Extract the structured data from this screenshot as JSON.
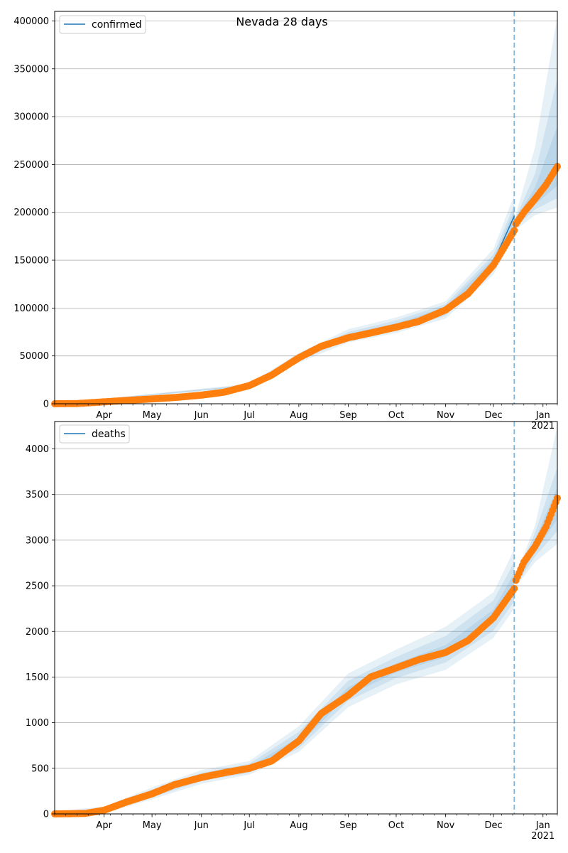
{
  "figure": {
    "title": "Nevada 28 days",
    "cutoff_date": "2020-12-14"
  },
  "colors": {
    "model_line": "#1f77b4",
    "band": "#1f77b4",
    "observed": "#ff7f0e",
    "grid": "#b0b0b0",
    "cutoff_line": "#1f77b4"
  },
  "chart_data": [
    {
      "type": "line",
      "title": "Nevada 28 days",
      "legend": {
        "entries": [
          "confirmed"
        ],
        "placement": "top-left"
      },
      "x_start": "2020-03-01",
      "x_end": "2021-01-10",
      "x_tick_labels": [
        "Apr",
        "May",
        "Jun",
        "Jul",
        "Aug",
        "Sep",
        "Oct",
        "Nov",
        "Dec",
        "Jan\n2021"
      ],
      "ylim": [
        0,
        410000
      ],
      "y_ticks": [
        0,
        50000,
        100000,
        150000,
        200000,
        250000,
        300000,
        350000,
        400000
      ],
      "grid": "y",
      "series": [
        {
          "name": "confirmed",
          "role": "model",
          "points": [
            [
              "2020-03-01",
              0
            ],
            [
              "2020-04-01",
              2000
            ],
            [
              "2020-05-01",
              5000
            ],
            [
              "2020-06-01",
              9000
            ],
            [
              "2020-07-01",
              19000
            ],
            [
              "2020-07-15",
              30000
            ],
            [
              "2020-08-01",
              48000
            ],
            [
              "2020-08-15",
              60000
            ],
            [
              "2020-09-01",
              71000
            ],
            [
              "2020-09-15",
              76000
            ],
            [
              "2020-10-01",
              82000
            ],
            [
              "2020-10-15",
              88000
            ],
            [
              "2020-11-01",
              98000
            ],
            [
              "2020-11-15",
              115000
            ],
            [
              "2020-12-01",
              148000
            ],
            [
              "2020-12-14",
              196000
            ],
            [
              "2020-12-15",
              190000
            ],
            [
              "2020-12-20",
              203000
            ],
            [
              "2020-12-27",
              217000
            ],
            [
              "2021-01-03",
              232000
            ],
            [
              "2021-01-10",
              250000
            ]
          ]
        },
        {
          "name": "confirmed observed",
          "role": "observed",
          "points": [
            [
              "2020-03-01",
              0
            ],
            [
              "2020-03-15",
              200
            ],
            [
              "2020-04-01",
              2000
            ],
            [
              "2020-04-15",
              3500
            ],
            [
              "2020-05-01",
              5000
            ],
            [
              "2020-05-15",
              6500
            ],
            [
              "2020-06-01",
              9000
            ],
            [
              "2020-06-15",
              12000
            ],
            [
              "2020-07-01",
              19000
            ],
            [
              "2020-07-15",
              30000
            ],
            [
              "2020-08-01",
              48000
            ],
            [
              "2020-08-15",
              60000
            ],
            [
              "2020-09-01",
              69000
            ],
            [
              "2020-09-15",
              74000
            ],
            [
              "2020-10-01",
              80000
            ],
            [
              "2020-10-15",
              86000
            ],
            [
              "2020-11-01",
              98000
            ],
            [
              "2020-11-15",
              115000
            ],
            [
              "2020-12-01",
              145000
            ],
            [
              "2020-12-14",
              181000
            ],
            [
              "2020-12-15",
              188000
            ],
            [
              "2020-12-20",
              200000
            ],
            [
              "2020-12-27",
              214000
            ],
            [
              "2021-01-03",
              229000
            ],
            [
              "2021-01-10",
              248000
            ]
          ]
        }
      ],
      "bands": [
        {
          "points": [
            [
              "2020-03-01",
              0,
              0
            ],
            [
              "2020-07-01",
              17000,
              21000
            ],
            [
              "2020-08-01",
              43000,
              53000
            ],
            [
              "2020-09-01",
              64000,
              78000
            ],
            [
              "2020-10-01",
              74000,
              90000
            ],
            [
              "2020-11-01",
              89000,
              107000
            ],
            [
              "2020-12-01",
              135000,
              162000
            ],
            [
              "2020-12-14",
              175000,
              218000
            ],
            [
              "2020-12-15",
              182000,
              198000
            ],
            [
              "2020-12-27",
              197000,
              268000
            ],
            [
              "2021-01-10",
              205000,
              405000
            ]
          ]
        },
        {
          "points": [
            [
              "2020-03-01",
              0,
              0
            ],
            [
              "2020-07-01",
              18000,
              20000
            ],
            [
              "2020-08-01",
              45000,
              51000
            ],
            [
              "2020-09-01",
              67000,
              75000
            ],
            [
              "2020-10-01",
              77000,
              87000
            ],
            [
              "2020-11-01",
              92000,
              104000
            ],
            [
              "2020-12-01",
              140000,
              156000
            ],
            [
              "2020-12-14",
              183000,
              208000
            ],
            [
              "2020-12-15",
              185000,
              195000
            ],
            [
              "2020-12-27",
              203000,
              240000
            ],
            [
              "2021-01-10",
              215000,
              340000
            ]
          ]
        },
        {
          "points": [
            [
              "2020-03-01",
              0,
              0
            ],
            [
              "2020-07-01",
              18500,
              19500
            ],
            [
              "2020-08-01",
              46500,
              49500
            ],
            [
              "2020-09-01",
              69000,
              73000
            ],
            [
              "2020-10-01",
              80000,
              84000
            ],
            [
              "2020-11-01",
              95000,
              101000
            ],
            [
              "2020-12-01",
              144000,
              152000
            ],
            [
              "2020-12-14",
              190000,
              202000
            ],
            [
              "2020-12-15",
              187000,
              193000
            ],
            [
              "2020-12-27",
              208000,
              226000
            ],
            [
              "2021-01-10",
              228000,
              290000
            ]
          ]
        }
      ]
    },
    {
      "type": "line",
      "legend": {
        "entries": [
          "deaths"
        ],
        "placement": "top-left"
      },
      "x_start": "2020-03-01",
      "x_end": "2021-01-10",
      "x_tick_labels": [
        "Apr",
        "May",
        "Jun",
        "Jul",
        "Aug",
        "Sep",
        "Oct",
        "Nov",
        "Dec",
        "Jan\n2021"
      ],
      "ylim": [
        0,
        4300
      ],
      "y_ticks": [
        0,
        500,
        1000,
        1500,
        2000,
        2500,
        3000,
        3500,
        4000
      ],
      "grid": "y",
      "series": [
        {
          "name": "deaths",
          "role": "model",
          "points": [
            [
              "2020-03-01",
              0
            ],
            [
              "2020-03-20",
              5
            ],
            [
              "2020-04-01",
              40
            ],
            [
              "2020-04-15",
              130
            ],
            [
              "2020-05-01",
              220
            ],
            [
              "2020-05-15",
              320
            ],
            [
              "2020-06-01",
              400
            ],
            [
              "2020-06-15",
              450
            ],
            [
              "2020-07-01",
              490
            ],
            [
              "2020-07-15",
              570
            ],
            [
              "2020-08-01",
              780
            ],
            [
              "2020-08-15",
              1100
            ],
            [
              "2020-09-01",
              1340
            ],
            [
              "2020-09-15",
              1510
            ],
            [
              "2020-10-01",
              1600
            ],
            [
              "2020-10-15",
              1690
            ],
            [
              "2020-11-01",
              1770
            ],
            [
              "2020-11-15",
              1900
            ],
            [
              "2020-12-01",
              2150
            ],
            [
              "2020-12-14",
              2500
            ],
            [
              "2020-12-15",
              2560
            ],
            [
              "2020-12-20",
              2700
            ],
            [
              "2020-12-27",
              2920
            ],
            [
              "2021-01-03",
              3120
            ],
            [
              "2021-01-10",
              3400
            ]
          ]
        },
        {
          "name": "deaths observed",
          "role": "observed",
          "points": [
            [
              "2020-03-01",
              0
            ],
            [
              "2020-03-20",
              5
            ],
            [
              "2020-04-01",
              40
            ],
            [
              "2020-04-15",
              130
            ],
            [
              "2020-05-01",
              220
            ],
            [
              "2020-05-15",
              320
            ],
            [
              "2020-06-01",
              400
            ],
            [
              "2020-06-15",
              450
            ],
            [
              "2020-07-01",
              500
            ],
            [
              "2020-07-15",
              580
            ],
            [
              "2020-08-01",
              800
            ],
            [
              "2020-08-15",
              1100
            ],
            [
              "2020-09-01",
              1300
            ],
            [
              "2020-09-15",
              1500
            ],
            [
              "2020-10-01",
              1600
            ],
            [
              "2020-10-15",
              1690
            ],
            [
              "2020-11-01",
              1770
            ],
            [
              "2020-11-15",
              1900
            ],
            [
              "2020-12-01",
              2150
            ],
            [
              "2020-12-14",
              2470
            ],
            [
              "2020-12-15",
              2560
            ],
            [
              "2020-12-20",
              2760
            ],
            [
              "2020-12-27",
              2930
            ],
            [
              "2021-01-03",
              3150
            ],
            [
              "2021-01-10",
              3460
            ]
          ]
        }
      ],
      "bands": [
        {
          "points": [
            [
              "2020-03-01",
              30,
              0
            ],
            [
              "2020-04-01",
              80,
              10
            ],
            [
              "2020-05-01",
              290,
              160
            ],
            [
              "2020-06-01",
              480,
              330
            ],
            [
              "2020-07-01",
              580,
              430
            ],
            [
              "2020-08-01",
              960,
              680
            ],
            [
              "2020-09-01",
              1540,
              1170
            ],
            [
              "2020-10-01",
              1800,
              1420
            ],
            [
              "2020-11-01",
              2050,
              1580
            ],
            [
              "2020-12-01",
              2430,
              1930
            ],
            [
              "2020-12-14",
              2900,
              2250
            ],
            [
              "2020-12-15",
              2620,
              2490
            ],
            [
              "2020-12-27",
              3160,
              2760
            ],
            [
              "2021-01-10",
              4250,
              2960
            ]
          ]
        },
        {
          "points": [
            [
              "2020-03-01",
              20,
              0
            ],
            [
              "2020-04-01",
              65,
              20
            ],
            [
              "2020-05-01",
              265,
              180
            ],
            [
              "2020-06-01",
              450,
              360
            ],
            [
              "2020-07-01",
              550,
              450
            ],
            [
              "2020-08-01",
              900,
              720
            ],
            [
              "2020-09-01",
              1460,
              1240
            ],
            [
              "2020-10-01",
              1720,
              1490
            ],
            [
              "2020-11-01",
              1950,
              1660
            ],
            [
              "2020-12-01",
              2340,
              2010
            ],
            [
              "2020-12-14",
              2760,
              2330
            ],
            [
              "2020-12-15",
              2600,
              2510
            ],
            [
              "2020-12-27",
              3080,
              2820
            ],
            [
              "2021-01-10",
              3800,
              3100
            ]
          ]
        },
        {
          "points": [
            [
              "2020-03-01",
              10,
              0
            ],
            [
              "2020-04-01",
              52,
              30
            ],
            [
              "2020-05-01",
              240,
              200
            ],
            [
              "2020-06-01",
              425,
              385
            ],
            [
              "2020-07-01",
              520,
              470
            ],
            [
              "2020-08-01",
              840,
              760
            ],
            [
              "2020-09-01",
              1390,
              1300
            ],
            [
              "2020-10-01",
              1650,
              1550
            ],
            [
              "2020-11-01",
              1850,
              1720
            ],
            [
              "2020-12-01",
              2240,
              2090
            ],
            [
              "2020-12-14",
              2640,
              2420
            ],
            [
              "2020-12-15",
              2580,
              2530
            ],
            [
              "2020-12-27",
              3000,
              2870
            ],
            [
              "2021-01-10",
              3580,
              3230
            ]
          ]
        }
      ]
    }
  ]
}
